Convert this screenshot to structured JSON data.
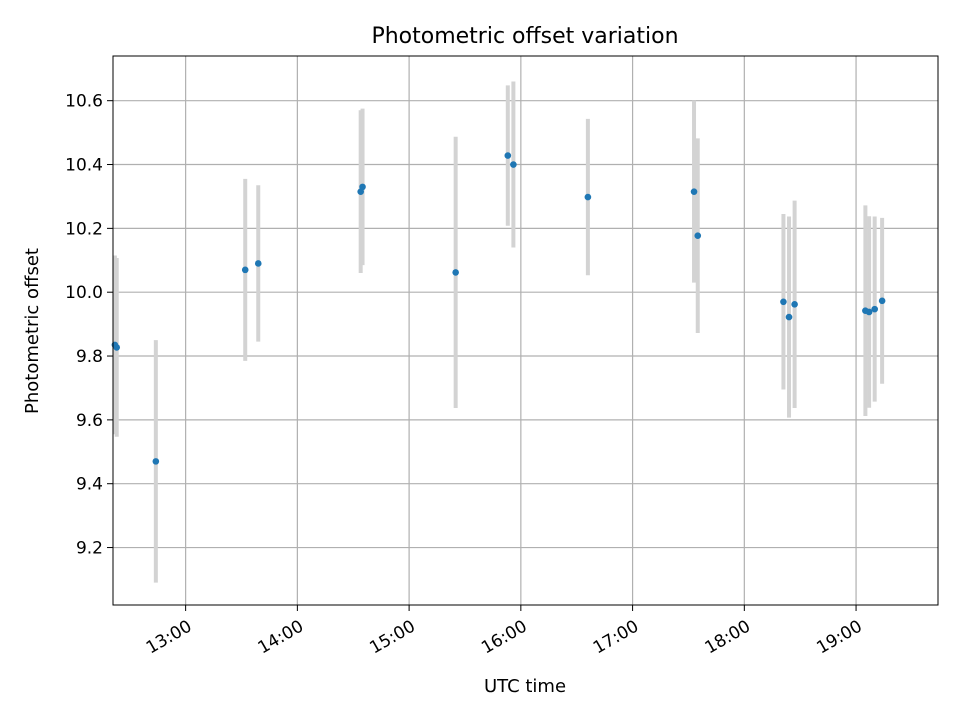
{
  "chart_data": {
    "type": "scatter",
    "title": "Photometric offset variation",
    "xlabel": "UTC time",
    "ylabel": "Photometric offset",
    "x_axis": {
      "kind": "time",
      "range": [
        "12:21",
        "19:44"
      ],
      "ticks": [
        "13:00",
        "14:00",
        "15:00",
        "16:00",
        "17:00",
        "18:00",
        "19:00"
      ]
    },
    "y_axis": {
      "range": [
        9.02,
        10.74
      ],
      "ticks": [
        9.2,
        9.4,
        9.6,
        9.8,
        10.0,
        10.2,
        10.4,
        10.6
      ]
    },
    "grid": true,
    "colors": {
      "points": "#1f77b4",
      "errorbars": "#d3d3d3",
      "grid": "#b0b0b0"
    },
    "points": [
      {
        "t": "12:22",
        "y": 9.835,
        "err": 0.28
      },
      {
        "t": "12:23",
        "y": 9.827,
        "err": 0.28
      },
      {
        "t": "12:44",
        "y": 9.47,
        "err": 0.38
      },
      {
        "t": "13:32",
        "y": 10.07,
        "err": 0.285
      },
      {
        "t": "13:39",
        "y": 10.09,
        "err": 0.245
      },
      {
        "t": "14:34",
        "y": 10.315,
        "err": 0.255
      },
      {
        "t": "14:35",
        "y": 10.33,
        "err": 0.245
      },
      {
        "t": "15:25",
        "y": 10.062,
        "err": 0.425
      },
      {
        "t": "15:53",
        "y": 10.428,
        "err": 0.22
      },
      {
        "t": "15:56",
        "y": 10.4,
        "err": 0.26
      },
      {
        "t": "16:36",
        "y": 10.298,
        "err": 0.245
      },
      {
        "t": "17:33",
        "y": 10.315,
        "err": 0.285
      },
      {
        "t": "17:35",
        "y": 10.177,
        "err": 0.305
      },
      {
        "t": "18:21",
        "y": 9.97,
        "err": 0.275
      },
      {
        "t": "18:24",
        "y": 9.922,
        "err": 0.315
      },
      {
        "t": "18:27",
        "y": 9.962,
        "err": 0.325
      },
      {
        "t": "19:05",
        "y": 9.942,
        "err": 0.33
      },
      {
        "t": "19:07",
        "y": 9.938,
        "err": 0.3
      },
      {
        "t": "19:10",
        "y": 9.947,
        "err": 0.29
      },
      {
        "t": "19:14",
        "y": 9.973,
        "err": 0.26
      }
    ]
  }
}
